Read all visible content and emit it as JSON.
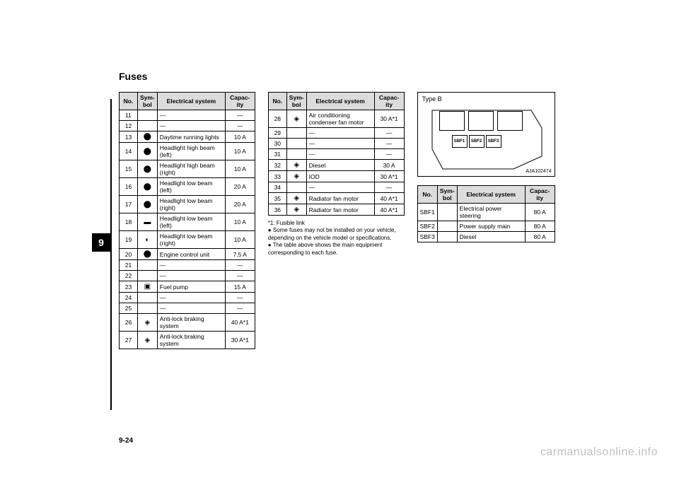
{
  "page": {
    "section_title": "Fuses",
    "chapter_tab": "9",
    "page_number": "9-24",
    "watermark": "carmanualsonline.info"
  },
  "headers": {
    "no": "No.",
    "symbol": "Sym-\nbol",
    "system": "Electrical system",
    "capacity": "Capac-\nity"
  },
  "table1": {
    "rows": [
      {
        "no": "11",
        "sym": "",
        "sys": "—",
        "cap": "—"
      },
      {
        "no": "12",
        "sym": "",
        "sys": "—",
        "cap": "—"
      },
      {
        "no": "13",
        "sym": "⬤",
        "sys": "Daytime running lights",
        "cap": "10 A"
      },
      {
        "no": "14",
        "sym": "⬤",
        "sys": "Headlight high beam (left)",
        "cap": "10 A"
      },
      {
        "no": "15",
        "sym": "⬤",
        "sys": "Headlight high beam (right)",
        "cap": "10 A"
      },
      {
        "no": "16",
        "sym": "⬤",
        "sys": "Headlight low beam (left)",
        "cap": "20 A"
      },
      {
        "no": "17",
        "sym": "⬤",
        "sys": "Headlight low beam (right)",
        "cap": "20 A"
      },
      {
        "no": "18",
        "sym": "▬",
        "sys": "Headlight low beam (left)",
        "cap": "10 A"
      },
      {
        "no": "19",
        "sym": "◐",
        "sys": "Headlight low beam (right)",
        "cap": "10 A"
      },
      {
        "no": "20",
        "sym": "⬤",
        "sys": "Engine control unit",
        "cap": "7.5 A"
      },
      {
        "no": "21",
        "sym": "",
        "sys": "—",
        "cap": "—"
      },
      {
        "no": "22",
        "sym": "",
        "sys": "—",
        "cap": "—"
      },
      {
        "no": "23",
        "sym": "▣",
        "sys": "Fuel pump",
        "cap": "15 A"
      },
      {
        "no": "24",
        "sym": "",
        "sys": "—",
        "cap": "—"
      },
      {
        "no": "25",
        "sym": "",
        "sys": "—",
        "cap": "—"
      },
      {
        "no": "26",
        "sym": "◈",
        "sys": "Anti-lock braking system",
        "cap": "40 A*1"
      },
      {
        "no": "27",
        "sym": "◈",
        "sys": "Anti-lock braking system",
        "cap": "30 A*1"
      }
    ]
  },
  "table2": {
    "rows": [
      {
        "no": "28",
        "sym": "◈",
        "sys": "Air conditioning condenser fan motor",
        "cap": "30 A*1"
      },
      {
        "no": "29",
        "sym": "",
        "sys": "—",
        "cap": "—"
      },
      {
        "no": "30",
        "sym": "",
        "sys": "—",
        "cap": "—"
      },
      {
        "no": "31",
        "sym": "",
        "sys": "—",
        "cap": "—"
      },
      {
        "no": "32",
        "sym": "◈",
        "sys": "Diesel",
        "cap": "30 A"
      },
      {
        "no": "33",
        "sym": "◈",
        "sys": "IOD",
        "cap": "30 A*1"
      },
      {
        "no": "34",
        "sym": "",
        "sys": "—",
        "cap": "—"
      },
      {
        "no": "35",
        "sym": "◈",
        "sys": "Radiator fan motor",
        "cap": "40 A*1"
      },
      {
        "no": "36",
        "sym": "◈",
        "sys": "Radiator fan motor",
        "cap": "40 A*1"
      }
    ],
    "notes": [
      "*1: Fusible link",
      "● Some fuses may not be installed on your vehicle, depending on the vehicle model or specifications.",
      "● The table above shows the main equipment corresponding to each fuse."
    ]
  },
  "diagram": {
    "type_label": "Type B",
    "code": "AJA102474",
    "sbf_labels": [
      "SBF1",
      "SBF2",
      "SBF3"
    ]
  },
  "table3": {
    "rows": [
      {
        "no": "SBF1",
        "sym": "",
        "sys": "Electrical power steering",
        "cap": "80 A"
      },
      {
        "no": "SBF2",
        "sym": "",
        "sys": "Power supply main",
        "cap": "80 A"
      },
      {
        "no": "SBF3",
        "sym": "",
        "sys": "Diesel",
        "cap": "80 A"
      }
    ]
  },
  "style": {
    "header_bg": "#dcdcdc",
    "border": "#000000",
    "tab_bg": "#000000",
    "tab_fg": "#ffffff",
    "watermark_color": "#c0c0c0",
    "body_font_size": 9
  }
}
